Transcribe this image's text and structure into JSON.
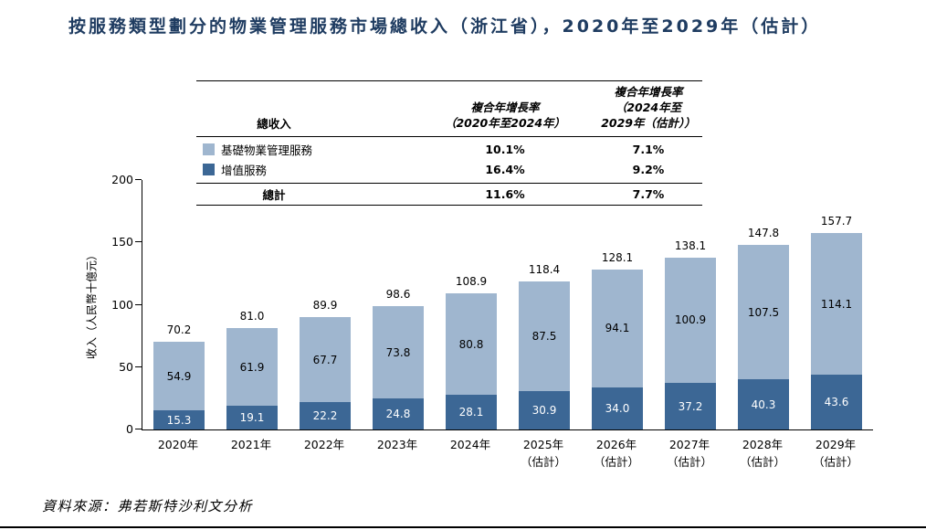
{
  "title": "按服務類型劃分的物業管理服務市場總收入（浙江省），2020年至2029年（估計）",
  "source": "資料來源：弗若斯特沙利文分析",
  "colors": {
    "basic_service": "#9FB6CF",
    "value_added_service": "#3C6795",
    "title_text": "#1F3C61"
  },
  "table": {
    "col1_header": "總收入",
    "col2_header_line1": "複合年增長率",
    "col2_header_line2": "（2020年至2024年）",
    "col3_header_line1": "複合年增長率",
    "col3_header_line2": "（2024年至",
    "col3_header_line3": "2029年（估計））",
    "rows": [
      {
        "label": "基礎物業管理服務",
        "cagr1": "10.1%",
        "cagr2": "7.1%",
        "swatch": "#9FB6CF"
      },
      {
        "label": "增值服務",
        "cagr1": "16.4%",
        "cagr2": "9.2%",
        "swatch": "#3C6795"
      }
    ],
    "total_row": {
      "label": "總計",
      "cagr1": "11.6%",
      "cagr2": "7.7%"
    }
  },
  "chart_data": {
    "type": "bar",
    "stacked": true,
    "title": "按服務類型劃分的物業管理服務市場總收入（浙江省），2020年至2029年（估計）",
    "ylabel": "收入（人民幣十億元）",
    "ylim": [
      0,
      200
    ],
    "yticks": [
      0,
      50,
      100,
      150,
      200
    ],
    "categories": [
      {
        "label": "2020年",
        "note": ""
      },
      {
        "label": "2021年",
        "note": ""
      },
      {
        "label": "2022年",
        "note": ""
      },
      {
        "label": "2023年",
        "note": ""
      },
      {
        "label": "2024年",
        "note": ""
      },
      {
        "label": "2025年",
        "note": "（估計）"
      },
      {
        "label": "2026年",
        "note": "（估計）"
      },
      {
        "label": "2027年",
        "note": "（估計）"
      },
      {
        "label": "2028年",
        "note": "（估計）"
      },
      {
        "label": "2029年",
        "note": "（估計）"
      }
    ],
    "series": [
      {
        "name": "基礎物業管理服務",
        "color": "#9FB6CF",
        "label_color": "#000000",
        "values": [
          54.9,
          61.9,
          67.7,
          73.8,
          80.8,
          87.5,
          94.1,
          100.9,
          107.5,
          114.1
        ]
      },
      {
        "name": "增值服務",
        "color": "#3C6795",
        "label_color": "#FFFFFF",
        "values": [
          15.3,
          19.1,
          22.2,
          24.8,
          28.1,
          30.9,
          34.0,
          37.2,
          40.3,
          43.6
        ]
      }
    ],
    "totals": [
      70.2,
      81.0,
      89.9,
      98.6,
      108.9,
      118.4,
      128.1,
      138.1,
      147.8,
      157.7
    ]
  }
}
